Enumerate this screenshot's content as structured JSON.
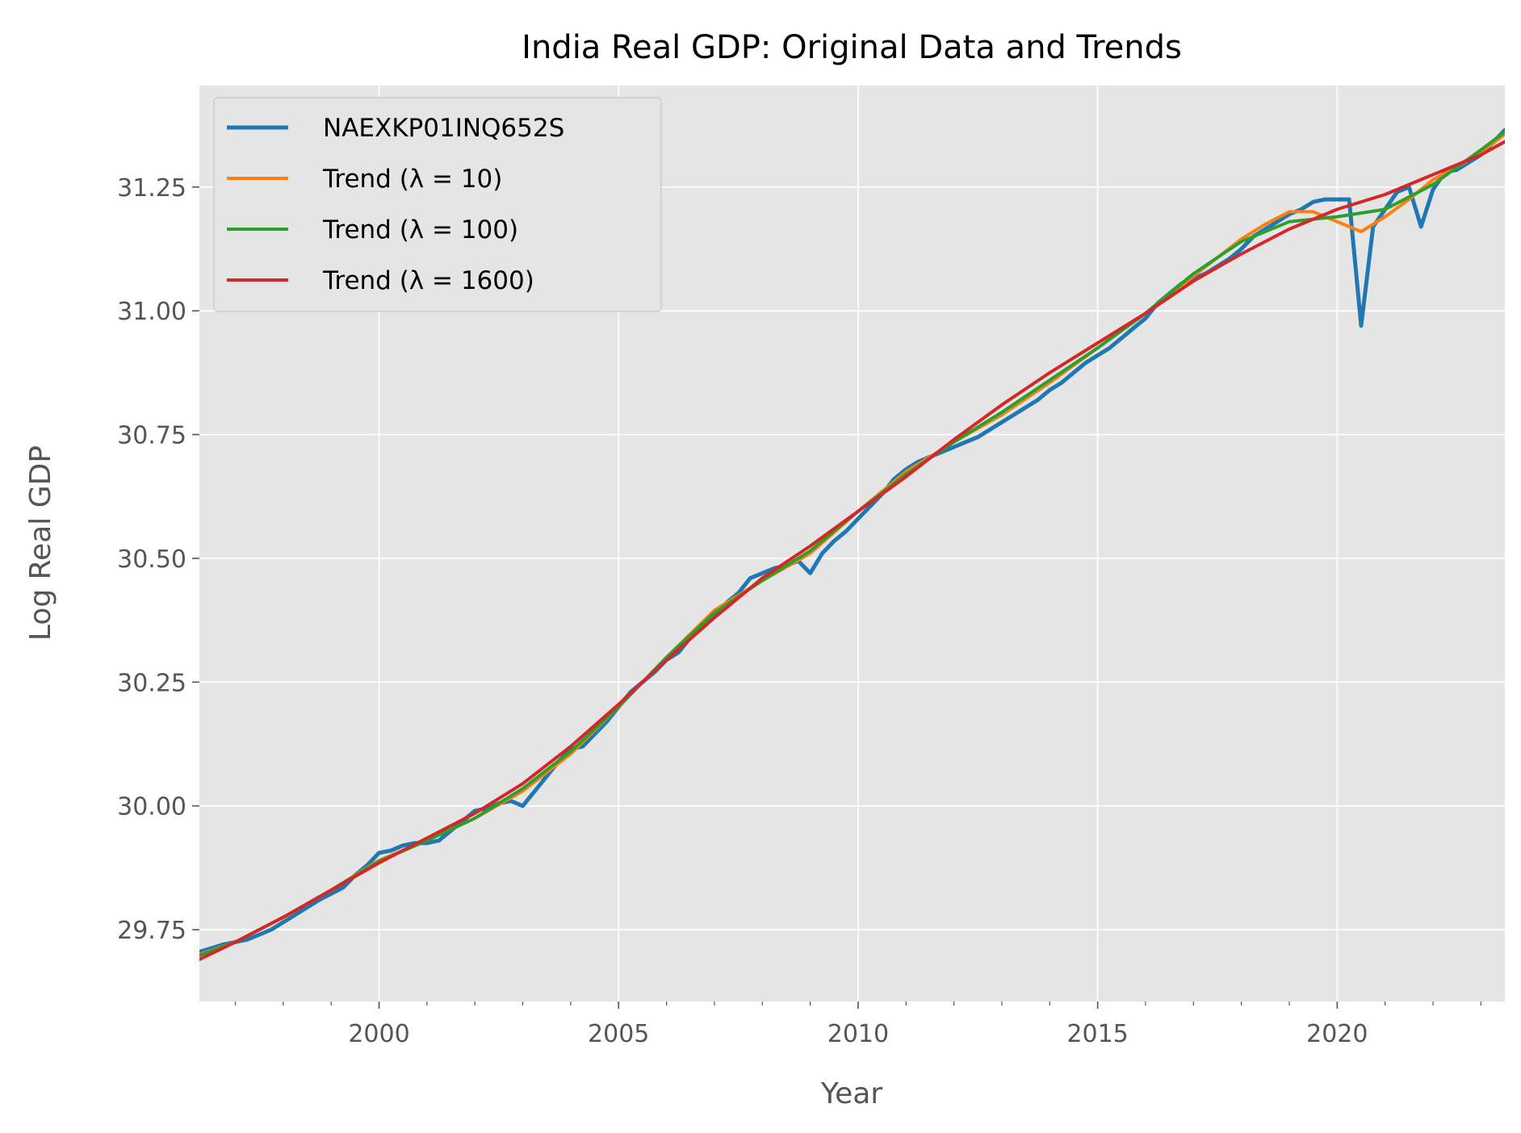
{
  "chart_data": {
    "type": "line",
    "title": "India Real GDP: Original Data and Trends",
    "xlabel": "Year",
    "ylabel": "Log Real GDP",
    "xlim": [
      1996.25,
      2023.5
    ],
    "ylim": [
      29.605,
      31.455
    ],
    "x_ticks": [
      2000,
      2005,
      2010,
      2015,
      2020
    ],
    "x_tick_labels": [
      "2000",
      "2005",
      "2010",
      "2015",
      "2020"
    ],
    "x_minor_ticks": [
      1997,
      1998,
      1999,
      2001,
      2002,
      2003,
      2004,
      2006,
      2007,
      2008,
      2009,
      2011,
      2012,
      2013,
      2014,
      2016,
      2017,
      2018,
      2019,
      2021,
      2022,
      2023
    ],
    "y_ticks": [
      29.75,
      30.0,
      30.25,
      30.5,
      30.75,
      31.0,
      31.25
    ],
    "y_tick_labels": [
      "29.75",
      "30.00",
      "30.25",
      "30.50",
      "30.75",
      "31.00",
      "31.25"
    ],
    "grid": true,
    "legend_position": "top-left",
    "background": "#e5e5e5",
    "series": [
      {
        "name": "NAEXKP01INQ652S",
        "color": "#1f77b4",
        "points": [
          [
            1996.25,
            29.705
          ],
          [
            1996.75,
            29.72
          ],
          [
            1997.25,
            29.73
          ],
          [
            1997.75,
            29.75
          ],
          [
            1998.25,
            29.78
          ],
          [
            1998.75,
            29.81
          ],
          [
            1999.25,
            29.835
          ],
          [
            1999.5,
            29.86
          ],
          [
            1999.75,
            29.88
          ],
          [
            2000.0,
            29.905
          ],
          [
            2000.25,
            29.91
          ],
          [
            2000.5,
            29.92
          ],
          [
            2000.75,
            29.925
          ],
          [
            2001.0,
            29.925
          ],
          [
            2001.25,
            29.93
          ],
          [
            2001.5,
            29.95
          ],
          [
            2001.75,
            29.97
          ],
          [
            2002.0,
            29.99
          ],
          [
            2002.25,
            29.995
          ],
          [
            2002.5,
            30.005
          ],
          [
            2002.75,
            30.01
          ],
          [
            2003.0,
            30.0
          ],
          [
            2003.25,
            30.03
          ],
          [
            2003.5,
            30.06
          ],
          [
            2003.75,
            30.09
          ],
          [
            2004.0,
            30.115
          ],
          [
            2004.25,
            30.12
          ],
          [
            2004.5,
            30.145
          ],
          [
            2004.75,
            30.17
          ],
          [
            2005.0,
            30.2
          ],
          [
            2005.25,
            30.23
          ],
          [
            2005.5,
            30.25
          ],
          [
            2005.75,
            30.27
          ],
          [
            2006.0,
            30.295
          ],
          [
            2006.25,
            30.31
          ],
          [
            2006.5,
            30.34
          ],
          [
            2006.75,
            30.36
          ],
          [
            2007.0,
            30.385
          ],
          [
            2007.25,
            30.41
          ],
          [
            2007.5,
            30.43
          ],
          [
            2007.75,
            30.46
          ],
          [
            2008.0,
            30.47
          ],
          [
            2008.25,
            30.48
          ],
          [
            2008.5,
            30.485
          ],
          [
            2008.75,
            30.495
          ],
          [
            2009.0,
            30.47
          ],
          [
            2009.25,
            30.51
          ],
          [
            2009.5,
            30.535
          ],
          [
            2009.75,
            30.555
          ],
          [
            2010.0,
            30.58
          ],
          [
            2010.25,
            30.605
          ],
          [
            2010.5,
            30.63
          ],
          [
            2010.75,
            30.66
          ],
          [
            2011.0,
            30.68
          ],
          [
            2011.25,
            30.695
          ],
          [
            2011.5,
            30.705
          ],
          [
            2011.75,
            30.715
          ],
          [
            2012.0,
            30.725
          ],
          [
            2012.25,
            30.735
          ],
          [
            2012.5,
            30.745
          ],
          [
            2012.75,
            30.76
          ],
          [
            2013.0,
            30.775
          ],
          [
            2013.25,
            30.79
          ],
          [
            2013.5,
            30.805
          ],
          [
            2013.75,
            30.82
          ],
          [
            2014.0,
            30.84
          ],
          [
            2014.25,
            30.855
          ],
          [
            2014.5,
            30.875
          ],
          [
            2014.75,
            30.895
          ],
          [
            2015.0,
            30.91
          ],
          [
            2015.25,
            30.925
          ],
          [
            2015.5,
            30.945
          ],
          [
            2015.75,
            30.965
          ],
          [
            2016.0,
            30.985
          ],
          [
            2016.25,
            31.015
          ],
          [
            2016.5,
            31.035
          ],
          [
            2016.75,
            31.055
          ],
          [
            2017.0,
            31.065
          ],
          [
            2017.25,
            31.075
          ],
          [
            2017.5,
            31.09
          ],
          [
            2017.75,
            31.105
          ],
          [
            2018.0,
            31.125
          ],
          [
            2018.25,
            31.15
          ],
          [
            2018.5,
            31.165
          ],
          [
            2018.75,
            31.18
          ],
          [
            2019.0,
            31.195
          ],
          [
            2019.25,
            31.205
          ],
          [
            2019.5,
            31.22
          ],
          [
            2019.75,
            31.225
          ],
          [
            2020.0,
            31.225
          ],
          [
            2020.25,
            31.225
          ],
          [
            2020.5,
            30.97
          ],
          [
            2020.75,
            31.17
          ],
          [
            2021.0,
            31.205
          ],
          [
            2021.25,
            31.24
          ],
          [
            2021.5,
            31.25
          ],
          [
            2021.75,
            31.17
          ],
          [
            2022.0,
            31.245
          ],
          [
            2022.25,
            31.28
          ],
          [
            2022.5,
            31.285
          ],
          [
            2022.75,
            31.3
          ],
          [
            2023.0,
            31.315
          ],
          [
            2023.25,
            31.34
          ],
          [
            2023.5,
            31.365
          ],
          [
            2023.75,
            31.38
          ]
        ]
      },
      {
        "name": "Trend (λ = 10)",
        "color": "#ff7f0e",
        "points": [
          [
            1996.25,
            29.7
          ],
          [
            1997.0,
            29.725
          ],
          [
            1998.0,
            29.775
          ],
          [
            1999.0,
            29.83
          ],
          [
            2000.0,
            29.89
          ],
          [
            2001.0,
            29.93
          ],
          [
            2002.0,
            29.975
          ],
          [
            2003.0,
            30.03
          ],
          [
            2004.0,
            30.105
          ],
          [
            2005.0,
            30.2
          ],
          [
            2006.0,
            30.3
          ],
          [
            2007.0,
            30.395
          ],
          [
            2008.0,
            30.455
          ],
          [
            2009.0,
            30.51
          ],
          [
            2010.0,
            30.595
          ],
          [
            2011.0,
            30.675
          ],
          [
            2012.0,
            30.735
          ],
          [
            2013.0,
            30.79
          ],
          [
            2014.0,
            30.855
          ],
          [
            2015.0,
            30.925
          ],
          [
            2016.0,
            30.995
          ],
          [
            2017.0,
            31.07
          ],
          [
            2018.0,
            31.145
          ],
          [
            2018.5,
            31.175
          ],
          [
            2019.0,
            31.2
          ],
          [
            2019.5,
            31.2
          ],
          [
            2020.0,
            31.18
          ],
          [
            2020.5,
            31.16
          ],
          [
            2021.0,
            31.19
          ],
          [
            2021.5,
            31.225
          ],
          [
            2022.0,
            31.265
          ],
          [
            2022.5,
            31.29
          ],
          [
            2023.0,
            31.32
          ],
          [
            2023.75,
            31.375
          ]
        ]
      },
      {
        "name": "Trend (λ = 100)",
        "color": "#2ca02c",
        "points": [
          [
            1996.25,
            29.698
          ],
          [
            1997.0,
            29.725
          ],
          [
            1998.0,
            29.775
          ],
          [
            1999.0,
            29.83
          ],
          [
            2000.0,
            29.888
          ],
          [
            2001.0,
            29.93
          ],
          [
            2002.0,
            29.975
          ],
          [
            2003.0,
            30.035
          ],
          [
            2004.0,
            30.11
          ],
          [
            2005.0,
            30.2
          ],
          [
            2006.0,
            30.3
          ],
          [
            2007.0,
            30.39
          ],
          [
            2008.0,
            30.455
          ],
          [
            2009.0,
            30.515
          ],
          [
            2010.0,
            30.595
          ],
          [
            2011.0,
            30.67
          ],
          [
            2012.0,
            30.735
          ],
          [
            2013.0,
            30.795
          ],
          [
            2014.0,
            30.86
          ],
          [
            2015.0,
            30.925
          ],
          [
            2016.0,
            30.995
          ],
          [
            2017.0,
            31.075
          ],
          [
            2018.0,
            31.14
          ],
          [
            2019.0,
            31.18
          ],
          [
            2020.0,
            31.19
          ],
          [
            2021.0,
            31.205
          ],
          [
            2022.0,
            31.255
          ],
          [
            2023.0,
            31.325
          ],
          [
            2023.75,
            31.38
          ]
        ]
      },
      {
        "name": "Trend (λ = 1600)",
        "color": "#d62728",
        "points": [
          [
            1996.25,
            29.69
          ],
          [
            1997.0,
            29.725
          ],
          [
            1998.0,
            29.775
          ],
          [
            1999.0,
            29.83
          ],
          [
            2000.0,
            29.885
          ],
          [
            2001.0,
            29.935
          ],
          [
            2002.0,
            29.985
          ],
          [
            2003.0,
            30.045
          ],
          [
            2004.0,
            30.12
          ],
          [
            2005.0,
            30.205
          ],
          [
            2006.0,
            30.295
          ],
          [
            2007.0,
            30.38
          ],
          [
            2008.0,
            30.46
          ],
          [
            2009.0,
            30.525
          ],
          [
            2010.0,
            30.595
          ],
          [
            2011.0,
            30.665
          ],
          [
            2012.0,
            30.74
          ],
          [
            2013.0,
            30.81
          ],
          [
            2014.0,
            30.875
          ],
          [
            2015.0,
            30.935
          ],
          [
            2016.0,
            30.995
          ],
          [
            2017.0,
            31.06
          ],
          [
            2018.0,
            31.115
          ],
          [
            2019.0,
            31.165
          ],
          [
            2020.0,
            31.205
          ],
          [
            2021.0,
            31.235
          ],
          [
            2022.0,
            31.275
          ],
          [
            2023.0,
            31.315
          ],
          [
            2023.75,
            31.355
          ]
        ]
      }
    ]
  }
}
